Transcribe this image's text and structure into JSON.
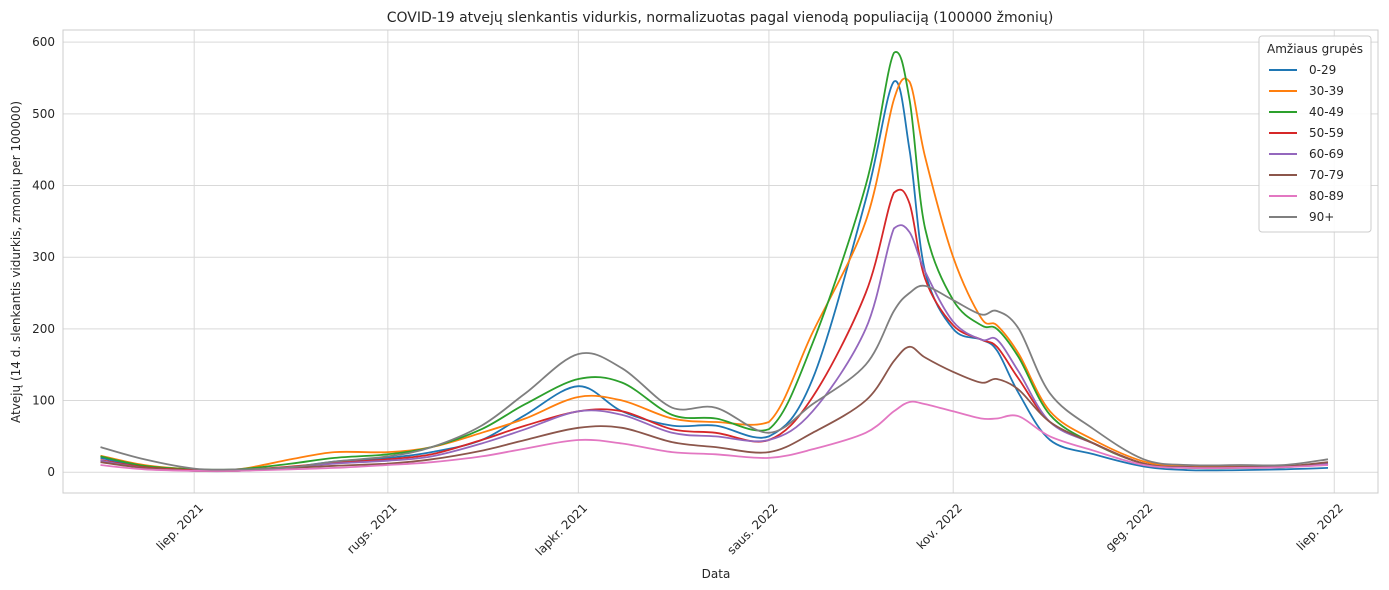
{
  "chart_data": {
    "type": "line",
    "title": "COVID-19 atvejų slenkantis vidurkis, normalizuotas pagal vienodą populiaciją (100000 žmonių)",
    "xlabel": "Data",
    "ylabel": "Atvejų (14 d. slenkantis vidurkis, zmoniu per 100000)",
    "ylim": [
      -29,
      617
    ],
    "xlim": [
      "2021-05-20",
      "2022-07-15"
    ],
    "yticks": [
      0,
      100,
      200,
      300,
      400,
      500,
      600
    ],
    "xticks": [
      {
        "date": "2021-07-01",
        "label": "liep. 2021"
      },
      {
        "date": "2021-09-01",
        "label": "rugs. 2021"
      },
      {
        "date": "2021-11-01",
        "label": "lapkr. 2021"
      },
      {
        "date": "2022-01-01",
        "label": "saus. 2022"
      },
      {
        "date": "2022-03-01",
        "label": "kov. 2022"
      },
      {
        "date": "2022-05-01",
        "label": "geg. 2022"
      },
      {
        "date": "2022-07-01",
        "label": "liep. 2022"
      }
    ],
    "grid": true,
    "legend": {
      "title": "Amžiaus grupės",
      "position": "top-right"
    },
    "x": [
      "2021-06-01",
      "2021-06-15",
      "2021-07-01",
      "2021-07-15",
      "2021-08-01",
      "2021-08-15",
      "2021-09-01",
      "2021-09-15",
      "2021-10-01",
      "2021-10-15",
      "2021-11-01",
      "2021-11-15",
      "2021-12-01",
      "2021-12-15",
      "2022-01-01",
      "2022-01-15",
      "2022-02-01",
      "2022-02-10",
      "2022-02-15",
      "2022-02-20",
      "2022-03-01",
      "2022-03-10",
      "2022-03-15",
      "2022-03-22",
      "2022-04-01",
      "2022-04-15",
      "2022-05-01",
      "2022-05-15",
      "2022-06-01",
      "2022-06-15",
      "2022-06-29"
    ],
    "series": [
      {
        "name": "0-29",
        "color": "#1f77b4",
        "values": [
          20,
          8,
          3,
          3,
          7,
          15,
          20,
          28,
          45,
          80,
          120,
          85,
          65,
          65,
          50,
          130,
          380,
          545,
          450,
          280,
          200,
          185,
          170,
          110,
          45,
          25,
          8,
          3,
          3,
          4,
          6
        ]
      },
      {
        "name": "30-39",
        "color": "#ff7f0e",
        "values": [
          23,
          10,
          4,
          4,
          18,
          28,
          28,
          35,
          55,
          75,
          105,
          100,
          75,
          70,
          70,
          195,
          350,
          520,
          545,
          440,
          300,
          215,
          205,
          165,
          85,
          45,
          15,
          8,
          8,
          8,
          10
        ]
      },
      {
        "name": "40-49",
        "color": "#2ca02c",
        "values": [
          22,
          9,
          4,
          4,
          12,
          20,
          25,
          35,
          60,
          95,
          130,
          125,
          80,
          75,
          60,
          180,
          400,
          585,
          520,
          340,
          240,
          205,
          200,
          160,
          80,
          40,
          12,
          6,
          6,
          7,
          12
        ]
      },
      {
        "name": "50-59",
        "color": "#d62728",
        "values": [
          17,
          7,
          3,
          3,
          8,
          13,
          18,
          25,
          45,
          65,
          85,
          85,
          60,
          55,
          45,
          105,
          250,
          390,
          375,
          270,
          205,
          185,
          175,
          130,
          70,
          40,
          12,
          7,
          7,
          8,
          12
        ]
      },
      {
        "name": "60-69",
        "color": "#9467bd",
        "values": [
          16,
          6,
          2,
          2,
          7,
          12,
          16,
          22,
          40,
          60,
          85,
          80,
          55,
          50,
          45,
          85,
          200,
          340,
          335,
          280,
          210,
          185,
          185,
          140,
          70,
          40,
          12,
          7,
          7,
          8,
          12
        ]
      },
      {
        "name": "70-79",
        "color": "#8c564b",
        "values": [
          14,
          6,
          2,
          2,
          6,
          9,
          12,
          18,
          30,
          45,
          62,
          62,
          42,
          35,
          28,
          55,
          100,
          155,
          175,
          160,
          140,
          125,
          130,
          115,
          70,
          40,
          12,
          7,
          7,
          8,
          14
        ]
      },
      {
        "name": "80-89",
        "color": "#e377c2",
        "values": [
          10,
          4,
          2,
          2,
          4,
          6,
          10,
          14,
          22,
          33,
          45,
          40,
          28,
          25,
          20,
          32,
          55,
          85,
          98,
          95,
          85,
          75,
          75,
          78,
          50,
          30,
          10,
          6,
          6,
          7,
          10
        ]
      },
      {
        "name": "90+",
        "color": "#7f7f7f",
        "values": [
          35,
          18,
          5,
          4,
          7,
          15,
          22,
          35,
          65,
          110,
          165,
          145,
          90,
          90,
          55,
          95,
          150,
          225,
          250,
          260,
          240,
          220,
          225,
          200,
          110,
          60,
          18,
          10,
          10,
          10,
          18
        ]
      }
    ]
  }
}
